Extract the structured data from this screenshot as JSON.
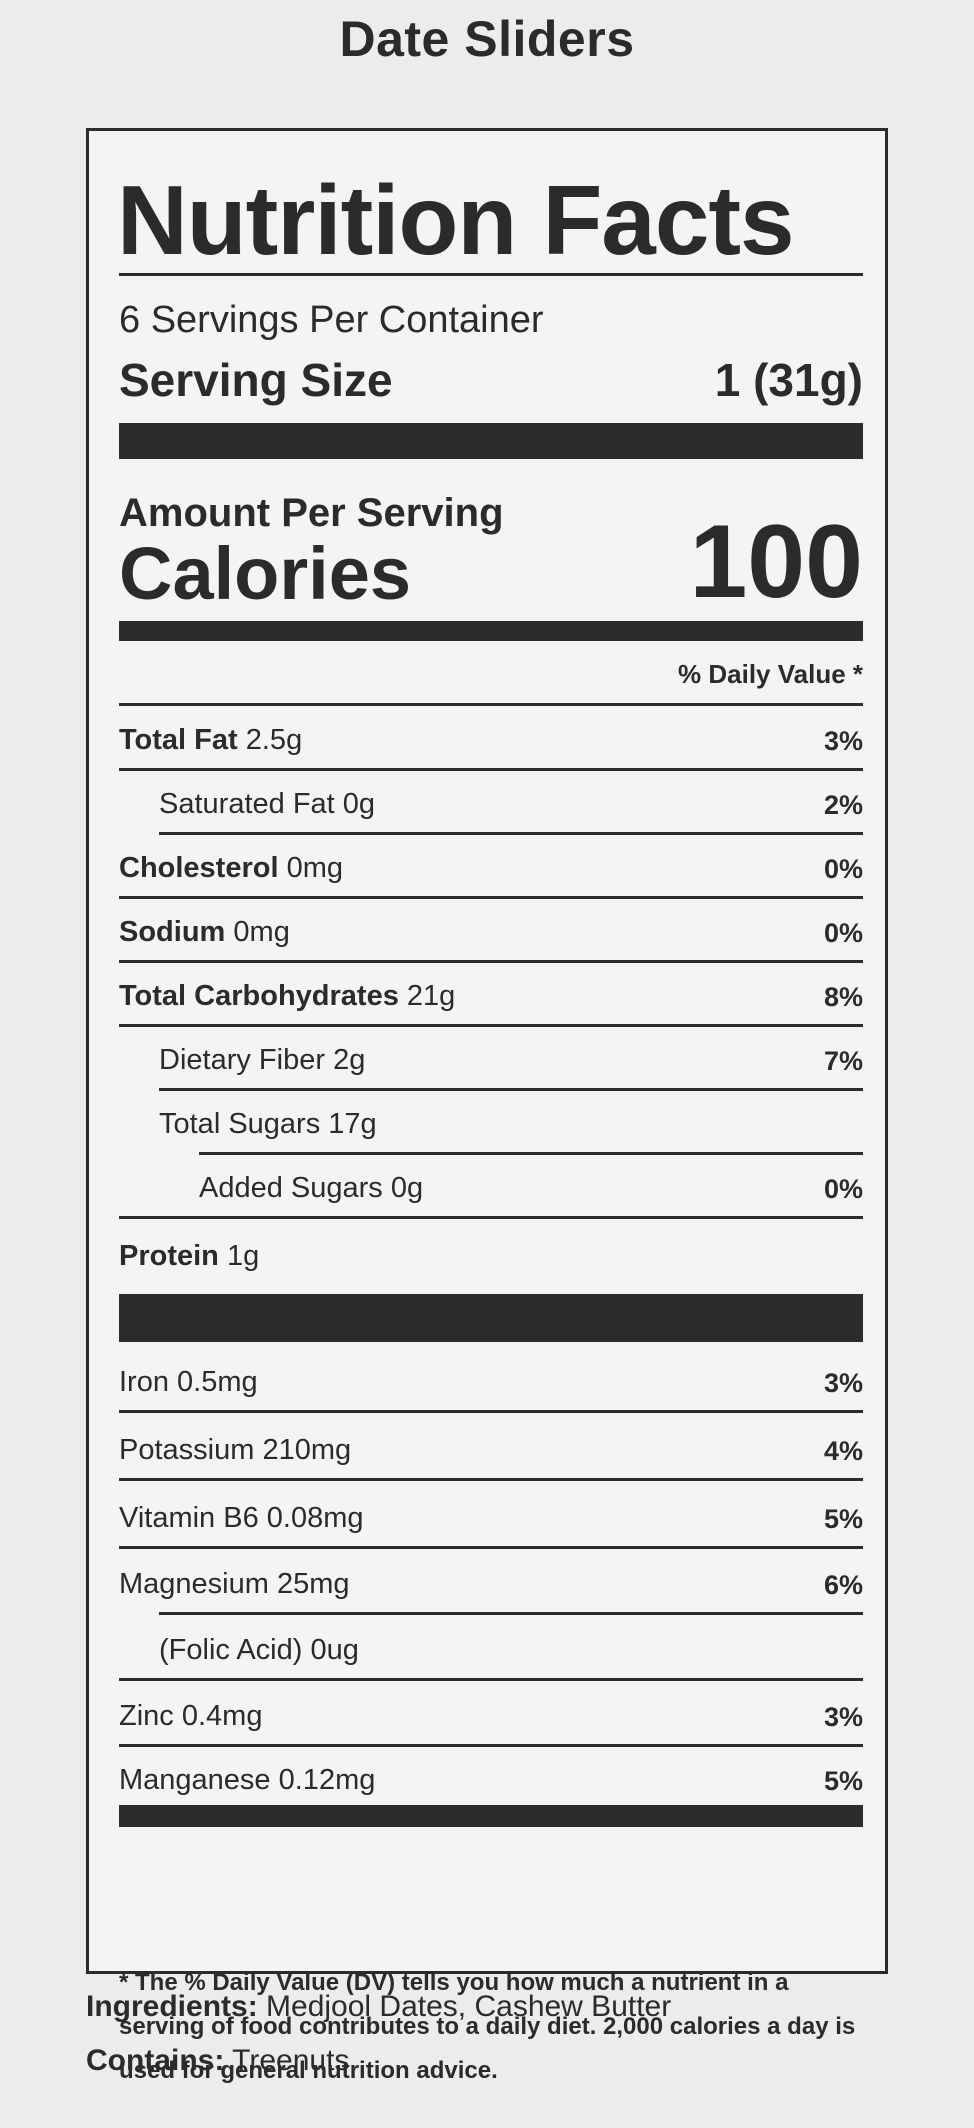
{
  "product_title": "Date Sliders",
  "label": {
    "title": "Nutrition Facts",
    "servings_per_container": "6 Servings Per Container",
    "serving_size_label": "Serving Size",
    "serving_size_value": "1 (31g)",
    "amount_per_serving": "Amount Per Serving",
    "calories_label": "Calories",
    "calories_value": "100",
    "daily_value_header": "% Daily Value *",
    "nutrients": [
      {
        "name": "Total Fat",
        "amount": "2.5g",
        "dv": "3%",
        "bold": true
      },
      {
        "name": "Saturated Fat",
        "amount": "0g",
        "dv": "2%",
        "bold": false
      },
      {
        "name": "Cholesterol",
        "amount": "0mg",
        "dv": "0%",
        "bold": true
      },
      {
        "name": "Sodium",
        "amount": "0mg",
        "dv": "0%",
        "bold": true
      },
      {
        "name": "Total Carbohydrates",
        "amount": "21g",
        "dv": "8%",
        "bold": true
      },
      {
        "name": "Dietary Fiber",
        "amount": "2g",
        "dv": "7%",
        "bold": false
      },
      {
        "name": "Total Sugars",
        "amount": "17g",
        "dv": "",
        "bold": false
      },
      {
        "name": "Added Sugars",
        "amount": "0g",
        "dv": "0%",
        "bold": false
      },
      {
        "name": "Protein",
        "amount": "1g",
        "dv": "",
        "bold": true
      }
    ],
    "minerals": [
      {
        "name": "Iron",
        "amount": "0.5mg",
        "dv": "3%"
      },
      {
        "name": "Potassium",
        "amount": "210mg",
        "dv": "4%"
      },
      {
        "name": "Vitamin B6",
        "amount": "0.08mg",
        "dv": "5%"
      },
      {
        "name": "Magnesium",
        "amount": "25mg",
        "dv": "6%"
      },
      {
        "name": "(Folic Acid)",
        "amount": "0ug",
        "dv": ""
      },
      {
        "name": "Zinc",
        "amount": "0.4mg",
        "dv": "3%"
      },
      {
        "name": "Manganese",
        "amount": "0.12mg",
        "dv": "5%"
      }
    ],
    "footnote": "* The % Daily Value (DV) tells you how much a nutrient in a serving of food contributes to a daily diet. 2,000 calories a day is used for general nutrition advice."
  },
  "ingredients": {
    "label": "Ingredients:",
    "value": "Medjool Dates, Cashew Butter"
  },
  "contains": {
    "label": "Contains:",
    "value": "Treenuts"
  }
}
